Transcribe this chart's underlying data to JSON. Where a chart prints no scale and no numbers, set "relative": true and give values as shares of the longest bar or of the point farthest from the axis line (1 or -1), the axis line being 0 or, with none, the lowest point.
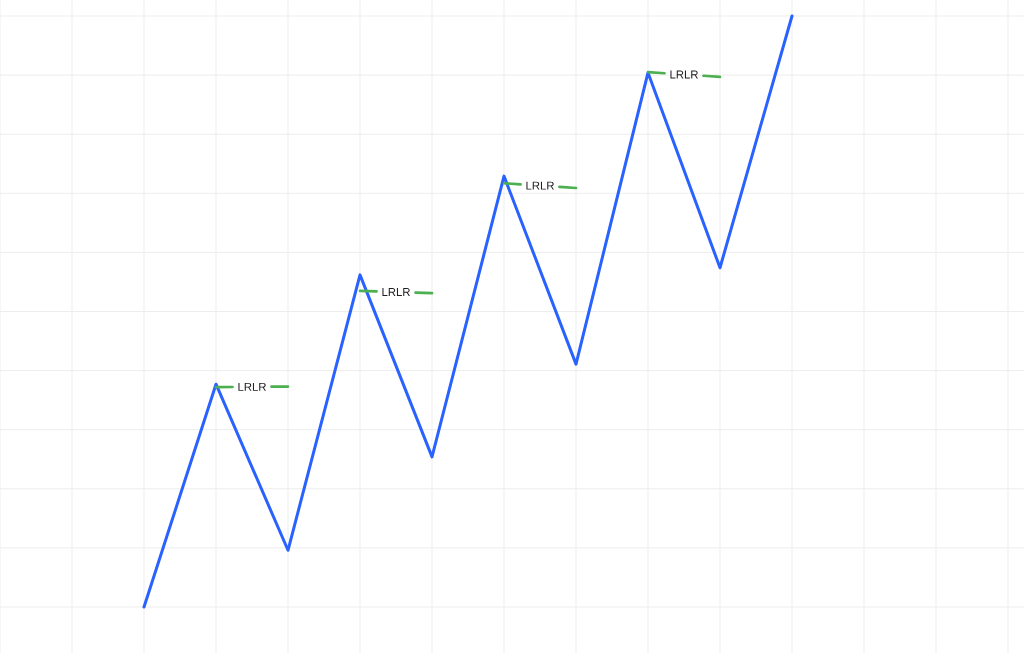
{
  "chart_data": {
    "type": "line",
    "relative": true,
    "grid": true,
    "categories": [
      null,
      null,
      null,
      null,
      null,
      null,
      null,
      null,
      null,
      null
    ],
    "series": [
      {
        "color": "#2962ff",
        "values": [
          0,
          0.377,
          0.096,
          0.562,
          0.254,
          0.729,
          0.411,
          0.904,
          0.574,
          1
        ]
      },
      {
        "name": "LRLR",
        "color": "#4caf50",
        "line_style": "dashed",
        "values": [
          null,
          0.372,
          0.373,
          null,
          null,
          null,
          null,
          null,
          null,
          null
        ]
      },
      {
        "name": "LRLR",
        "color": "#4caf50",
        "line_style": "dashed",
        "values": [
          null,
          null,
          null,
          0.535,
          0.531,
          null,
          null,
          null,
          null,
          null
        ]
      },
      {
        "name": "LRLR",
        "color": "#4caf50",
        "line_style": "dashed",
        "values": [
          null,
          null,
          null,
          null,
          null,
          0.717,
          0.709,
          null,
          null,
          null
        ]
      },
      {
        "name": "LRLR",
        "color": "#4caf50",
        "line_style": "dashed",
        "values": [
          null,
          null,
          null,
          null,
          null,
          null,
          null,
          0.905,
          0.897,
          null
        ]
      }
    ]
  }
}
